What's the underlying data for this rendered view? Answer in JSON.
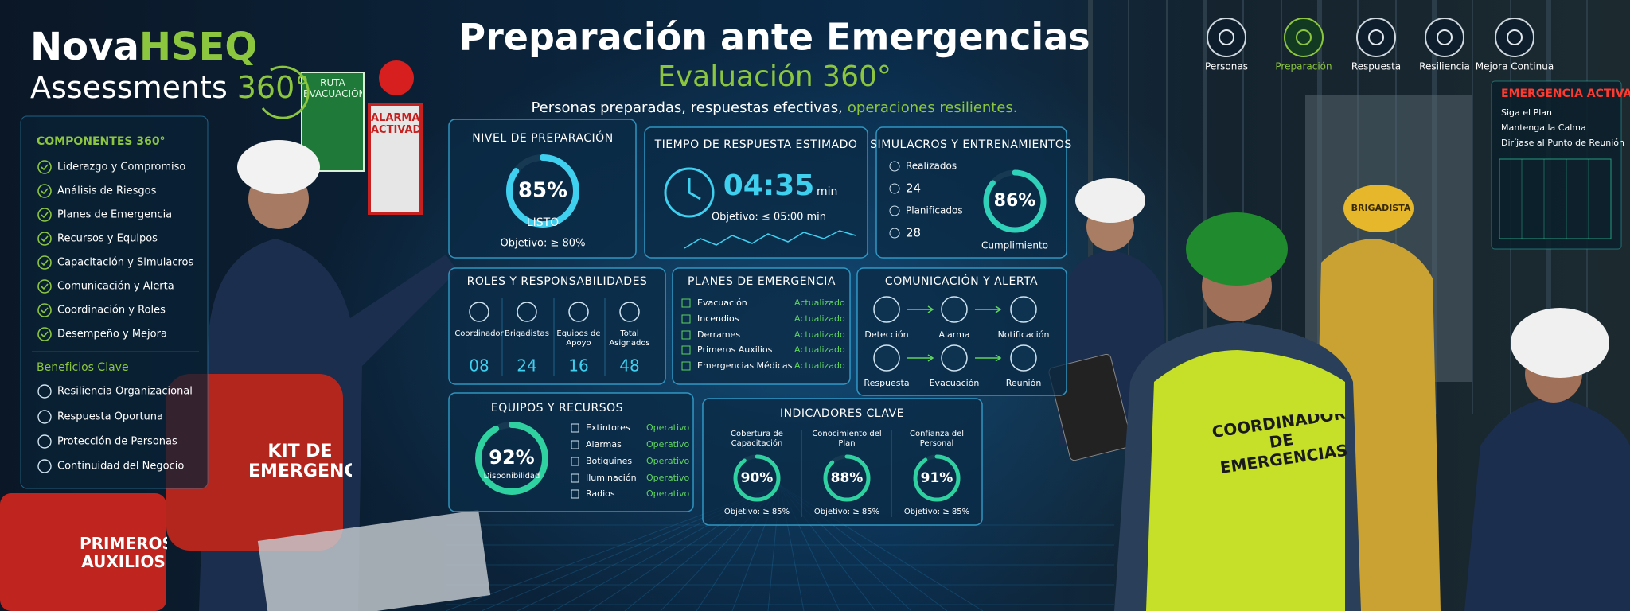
{
  "brand": {
    "name_a": "Nova",
    "name_b": "HSEQ",
    "product": "Assessments",
    "product_b": "360°"
  },
  "header": {
    "title": "Preparación ante Emergencias",
    "subtitle": "Evaluación 360°",
    "tagline": "Personas preparadas, respuestas efectivas,",
    "tagline_highlight": "operaciones resilientes."
  },
  "nav": {
    "items": [
      "Personas",
      "Preparación",
      "Respuesta",
      "Resiliencia",
      "Mejora Continua"
    ],
    "active_index": 1
  },
  "components": {
    "title": "COMPONENTES 360°",
    "items": [
      "Liderazgo y Compromiso",
      "Análisis de Riesgos",
      "Planes de Emergencia",
      "Recursos y Equipos",
      "Capacitación y Simulacros",
      "Comunicación y Alerta",
      "Coordinación y Roles",
      "Desempeño y Mejora"
    ]
  },
  "benefits": {
    "title": "Beneficios Clave",
    "items": [
      "Resiliencia Organizacional",
      "Respuesta Oportuna",
      "Protección de Personas",
      "Continuidad del Negocio"
    ]
  },
  "cards": {
    "readiness": {
      "title": "NIVEL DE PREPARACIÓN",
      "gauge": {
        "value": 85,
        "label": "85%"
      },
      "status": "LISTO",
      "target": "Objetivo: ≥ 80%"
    },
    "response_time": {
      "title": "TIEMPO DE RESPUESTA ESTIMADO",
      "value": "04:35",
      "unit": "min",
      "target": "Objetivo: ≤ 05:00 min"
    },
    "drills": {
      "title": "SIMULACROS Y ENTRENAMIENTOS",
      "rows": [
        {
          "label": "Realizados",
          "value": "24"
        },
        {
          "label": "Planificados",
          "value": "28"
        }
      ],
      "gauge": {
        "value": 86,
        "label": "86%"
      },
      "gauge_label": "Cumplimiento"
    },
    "roles": {
      "title": "ROLES Y RESPONSABILIDADES",
      "items": [
        {
          "label": "Coordinador",
          "value": "08"
        },
        {
          "label": "Brigadistas",
          "value": "24"
        },
        {
          "label": "Equipos de Apoyo",
          "value": "16"
        },
        {
          "label": "Total Asignados",
          "value": "48"
        }
      ]
    },
    "plans": {
      "title": "PLANES DE EMERGENCIA",
      "items": [
        {
          "label": "Evacuación",
          "status": "Actualizado"
        },
        {
          "label": "Incendios",
          "status": "Actualizado"
        },
        {
          "label": "Derrames",
          "status": "Actualizado"
        },
        {
          "label": "Primeros Auxilios",
          "status": "Actualizado"
        },
        {
          "label": "Emergencias Médicas",
          "status": "Actualizado"
        }
      ]
    },
    "communication": {
      "title": "COMUNICACIÓN Y ALERTA",
      "steps": [
        [
          "Detección",
          "Alarma",
          "Notificación"
        ],
        [
          "Respuesta",
          "Evacuación",
          "Reunión"
        ]
      ]
    },
    "equipment": {
      "title": "EQUIPOS Y RECURSOS",
      "gauge": {
        "value": 92,
        "label": "92%"
      },
      "gauge_label": "Disponibilidad",
      "items": [
        {
          "label": "Extintores",
          "status": "Operativo"
        },
        {
          "label": "Alarmas",
          "status": "Operativo"
        },
        {
          "label": "Botiquines",
          "status": "Operativo"
        },
        {
          "label": "Iluminación",
          "status": "Operativo"
        },
        {
          "label": "Radios",
          "status": "Operativo"
        }
      ]
    },
    "indicators": {
      "title": "INDICADORES CLAVE",
      "items": [
        {
          "label": "Cobertura de Capacitación",
          "gauge": {
            "value": 90,
            "label": "90%"
          },
          "target": "Objetivo: ≥ 85%"
        },
        {
          "label": "Conocimiento del Plan",
          "gauge": {
            "value": 88,
            "label": "88%"
          },
          "target": "Objetivo: ≥ 85%"
        },
        {
          "label": "Confianza del Personal",
          "gauge": {
            "value": 91,
            "label": "91%"
          },
          "target": "Objetivo: ≥ 85%"
        }
      ]
    }
  },
  "alert": {
    "title": "EMERGENCIA ACTIVA",
    "items": [
      "Siga el Plan",
      "Mantenga la Calma",
      "Diríjase al Punto de Reunión"
    ]
  },
  "scene": {
    "sign_route": "RUTA EVACUACIÓN",
    "sign_alarm": "ALARMA ACTIVADA",
    "kit": "KIT DE EMERGENCIA",
    "first_aid": "PRIMEROS AUXILIOS",
    "vest": "COORDINADOR DE EMERGENCIAS",
    "brigade": "BRIGADISTA"
  }
}
